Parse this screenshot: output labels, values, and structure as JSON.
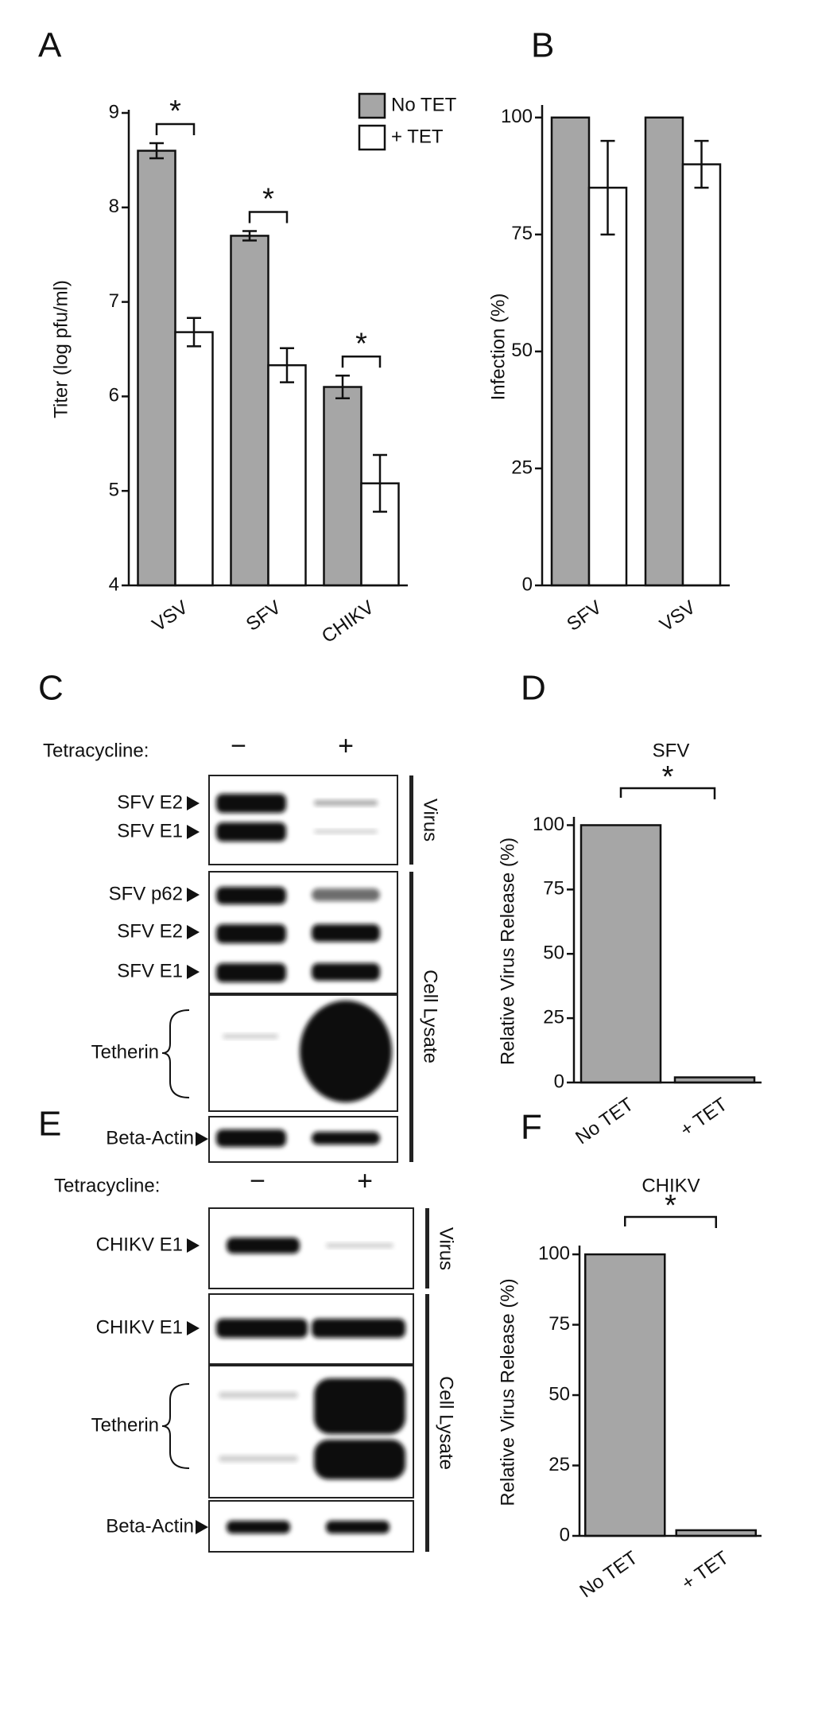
{
  "chart_data": [
    {
      "type": "bar",
      "panel": "A",
      "y_label": "Titer (log pfu/ml)",
      "categories": [
        "VSV",
        "SFV",
        "CHIKV"
      ],
      "series": [
        {
          "name": "No TET",
          "color": "#a6a6a6",
          "values": [
            8.6,
            7.7,
            6.1
          ],
          "errors": [
            0.08,
            0.05,
            0.12
          ]
        },
        {
          "name": "+ TET",
          "color": "#ffffff",
          "values": [
            6.68,
            6.33,
            5.08
          ],
          "errors": [
            0.15,
            0.18,
            0.3
          ]
        }
      ],
      "significance": [
        "*",
        "*",
        "*"
      ],
      "ylim": [
        4,
        9
      ],
      "yticks": [
        4,
        5,
        6,
        7,
        8,
        9
      ],
      "legend": "top-right"
    },
    {
      "type": "bar",
      "panel": "B",
      "y_label": "Infection (%)",
      "categories": [
        "SFV",
        "VSV"
      ],
      "series": [
        {
          "color": "#a6a6a6",
          "values": [
            100,
            100
          ],
          "errors": [
            null,
            null
          ]
        },
        {
          "color": "#ffffff",
          "values": [
            85,
            90
          ],
          "errors": [
            10,
            5
          ]
        }
      ],
      "ylim": [
        0,
        102
      ],
      "yticks": [
        0,
        25,
        50,
        75,
        100
      ]
    },
    {
      "type": "bar",
      "panel": "D",
      "title": "SFV",
      "y_label": "Relative Virus Release (%)",
      "categories": [
        "No TET",
        "+ TET"
      ],
      "values": [
        100,
        2
      ],
      "color": "#a6a6a6",
      "significance": "*",
      "ylim": [
        0,
        102
      ],
      "yticks": [
        0,
        25,
        50,
        75,
        100
      ]
    },
    {
      "type": "bar",
      "panel": "F",
      "title": "CHIKV",
      "y_label": "Relative Virus Release (%)",
      "categories": [
        "No TET",
        "+ TET"
      ],
      "values": [
        100,
        2
      ],
      "color": "#a6a6a6",
      "significance": "*",
      "ylim": [
        0,
        102
      ],
      "yticks": [
        0,
        25,
        50,
        75,
        100
      ]
    }
  ],
  "blots": [
    {
      "panel": "C",
      "treatment": "Tetracycline:",
      "conditions": [
        "−",
        "+"
      ],
      "groups": [
        "Virus",
        "Cell Lysate"
      ],
      "bands": [
        "SFV E2",
        "SFV E1",
        "SFV p62",
        "SFV E2",
        "SFV E1",
        "Tetherin",
        "Beta-Actin"
      ]
    },
    {
      "panel": "E",
      "treatment": "Tetracycline:",
      "conditions": [
        "−",
        "+"
      ],
      "groups": [
        "Virus",
        "Cell Lysate"
      ],
      "bands": [
        "CHIKV E1",
        "CHIKV E1",
        "Tetherin",
        "Beta-Actin"
      ]
    }
  ]
}
